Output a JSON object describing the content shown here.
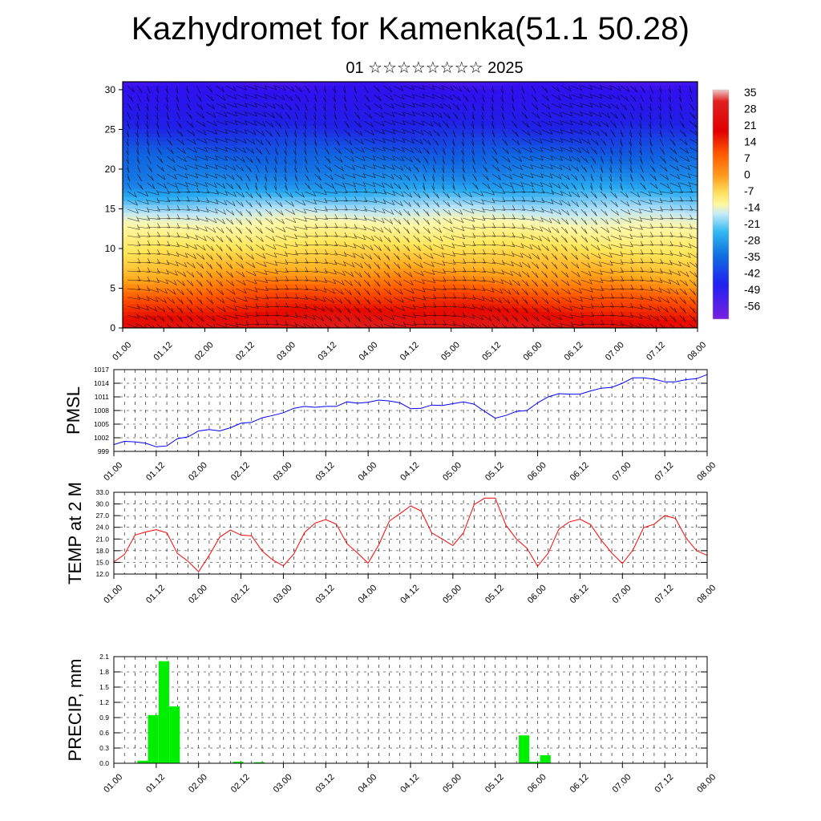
{
  "header": {
    "title": "Kazhydromet for Kamenka(51.1 50.28)",
    "subtitle": "01 ☆☆☆☆☆☆☆☆ 2025"
  },
  "time_ticks": [
    "01.00",
    "01.12",
    "02.00",
    "02.12",
    "03.00",
    "03.12",
    "04.00",
    "04.12",
    "05.00",
    "05.12",
    "06.00",
    "06.12",
    "07.00",
    "07.12",
    "08.00"
  ],
  "chart_data": [
    {
      "type": "heatmap",
      "title": "",
      "x_ticks": [
        "01.00",
        "01.12",
        "02.00",
        "02.12",
        "03.00",
        "03.12",
        "04.00",
        "04.12",
        "05.00",
        "05.12",
        "06.00",
        "06.12",
        "07.00",
        "07.12",
        "08.00"
      ],
      "y_ticks": [
        "0",
        "5",
        "10",
        "15",
        "20",
        "25",
        "30"
      ],
      "ylim": [
        0,
        31
      ],
      "colorbar": {
        "labels": [
          "35",
          "28",
          "21",
          "14",
          "7",
          "0",
          "-7",
          "-14",
          "-21",
          "-28",
          "-35",
          "-42",
          "-49",
          "-56"
        ],
        "range": [
          -63,
          42
        ]
      },
      "field": "temperature by level with wind barbs",
      "temp_bottom_c": 28,
      "temp_top_c": -58
    },
    {
      "type": "line",
      "ylabel": "PMSL",
      "ylim": [
        999,
        1017
      ],
      "y_ticks": [
        "999",
        "1002",
        "1005",
        "1008",
        "1011",
        "1014",
        "1017"
      ],
      "color": "#0000ff",
      "x": [
        0,
        3,
        6,
        9,
        12,
        15,
        18,
        21,
        24,
        27,
        30,
        33,
        36,
        39,
        42,
        45,
        48,
        51,
        54,
        57,
        60,
        63,
        66,
        69,
        72,
        75,
        78,
        81,
        84,
        87,
        90,
        93,
        96,
        99,
        102,
        105,
        108,
        111,
        114,
        117,
        120,
        123,
        126,
        129,
        132,
        135,
        138,
        141,
        144,
        147,
        150,
        153,
        156,
        159,
        162,
        165,
        168
      ],
      "values": [
        1000.5,
        1001.2,
        1001.1,
        1000.8,
        1000.0,
        1000.2,
        1001.8,
        1002.2,
        1003.5,
        1003.8,
        1003.5,
        1004.2,
        1005.2,
        1005.4,
        1006.4,
        1006.9,
        1007.5,
        1008.5,
        1008.9,
        1008.7,
        1008.9,
        1008.9,
        1009.9,
        1009.6,
        1009.8,
        1010.3,
        1010.1,
        1009.7,
        1008.4,
        1008.5,
        1009.2,
        1009.1,
        1009.5,
        1009.9,
        1009.4,
        1007.8,
        1006.3,
        1006.9,
        1007.8,
        1008.0,
        1009.7,
        1011.0,
        1011.7,
        1011.6,
        1011.6,
        1012.3,
        1012.9,
        1013.1,
        1014.0,
        1015.2,
        1015.2,
        1014.9,
        1014.3,
        1014.3,
        1014.8,
        1015.0,
        1015.9
      ]
    },
    {
      "type": "line",
      "ylabel": "TEMP at 2 M",
      "ylim": [
        12.0,
        33.0
      ],
      "y_ticks": [
        "12.0",
        "15.0",
        "18.0",
        "21.0",
        "24.0",
        "27.0",
        "30.0",
        "33.0"
      ],
      "color": "#ff0000",
      "x": [
        0,
        3,
        6,
        9,
        12,
        15,
        18,
        21,
        24,
        27,
        30,
        33,
        36,
        39,
        42,
        45,
        48,
        51,
        54,
        57,
        60,
        63,
        66,
        69,
        72,
        75,
        78,
        81,
        84,
        87,
        90,
        93,
        96,
        99,
        102,
        105,
        108,
        111,
        114,
        117,
        120,
        123,
        126,
        129,
        132,
        135,
        138,
        141,
        144,
        147,
        150,
        153,
        156,
        159,
        162,
        165,
        168
      ],
      "values": [
        15.1,
        17.0,
        22.0,
        22.8,
        23.4,
        22.6,
        17.3,
        15.3,
        12.6,
        16.8,
        21.5,
        23.3,
        22.0,
        21.8,
        17.9,
        15.6,
        14.1,
        17.2,
        22.7,
        25.1,
        26.0,
        24.8,
        19.8,
        17.4,
        14.8,
        19.5,
        25.6,
        27.5,
        29.5,
        28.2,
        22.6,
        21.0,
        19.3,
        22.6,
        29.8,
        31.5,
        31.5,
        24.6,
        21.0,
        18.6,
        14.0,
        17.4,
        23.5,
        25.4,
        26.1,
        24.7,
        20.7,
        17.4,
        14.7,
        18.2,
        23.9,
        24.8,
        27.0,
        26.3,
        21.3,
        18.0,
        16.8
      ]
    },
    {
      "type": "bar",
      "ylabel": "PRECIP, mm",
      "ylim": [
        0.0,
        2.1
      ],
      "y_ticks": [
        "0.0",
        "0.3",
        "0.6",
        "0.9",
        "1.2",
        "1.5",
        "1.8",
        "2.1"
      ],
      "color": "#00ee00",
      "x": [
        0,
        3,
        6,
        9,
        12,
        15,
        18,
        21,
        24,
        27,
        30,
        33,
        36,
        39,
        42,
        45,
        48,
        51,
        54,
        57,
        60,
        63,
        66,
        69,
        72,
        75,
        78,
        81,
        84,
        87,
        90,
        93,
        96,
        99,
        102,
        105,
        108,
        111,
        114,
        117,
        120,
        123,
        126,
        129,
        132,
        135,
        138,
        141,
        144,
        147,
        150,
        153,
        156,
        159,
        162,
        165,
        168
      ],
      "values": [
        0,
        0,
        0.05,
        0.95,
        2.01,
        1.12,
        0,
        0,
        0,
        0,
        0,
        0.03,
        0,
        0.02,
        0,
        0,
        0,
        0,
        0,
        0,
        0,
        0,
        0,
        0,
        0,
        0,
        0,
        0,
        0,
        0,
        0,
        0,
        0,
        0,
        0,
        0,
        0,
        0,
        0.55,
        0.03,
        0.16,
        0,
        0,
        0,
        0,
        0,
        0,
        0,
        0,
        0,
        0,
        0,
        0,
        0,
        0,
        0,
        0
      ]
    }
  ]
}
